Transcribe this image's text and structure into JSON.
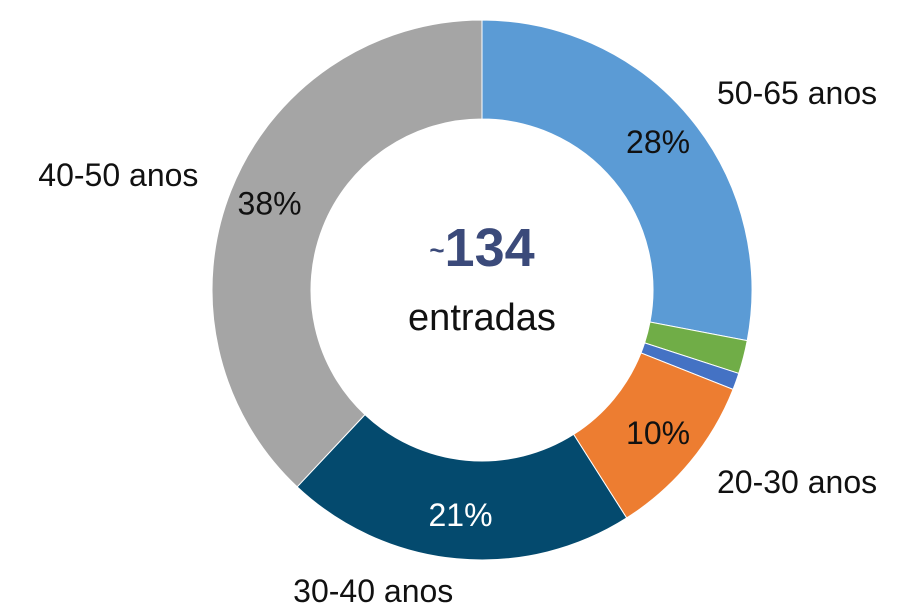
{
  "chart_data": {
    "type": "donut",
    "categories": [
      "50-65 anos",
      null,
      null,
      "20-30 anos",
      "30-40 anos",
      "40-50 anos"
    ],
    "values": [
      28,
      2,
      1,
      10,
      21,
      38
    ],
    "value_labels": [
      "28%",
      null,
      null,
      "10%",
      "21%",
      "38%"
    ],
    "colors": [
      "#5b9bd5",
      "#70ad47",
      "#4472c4",
      "#ed7d31",
      "#044a6e",
      "#a5a5a5"
    ],
    "center_prefix": "~",
    "center_value": 134,
    "center_text": "entradas"
  }
}
